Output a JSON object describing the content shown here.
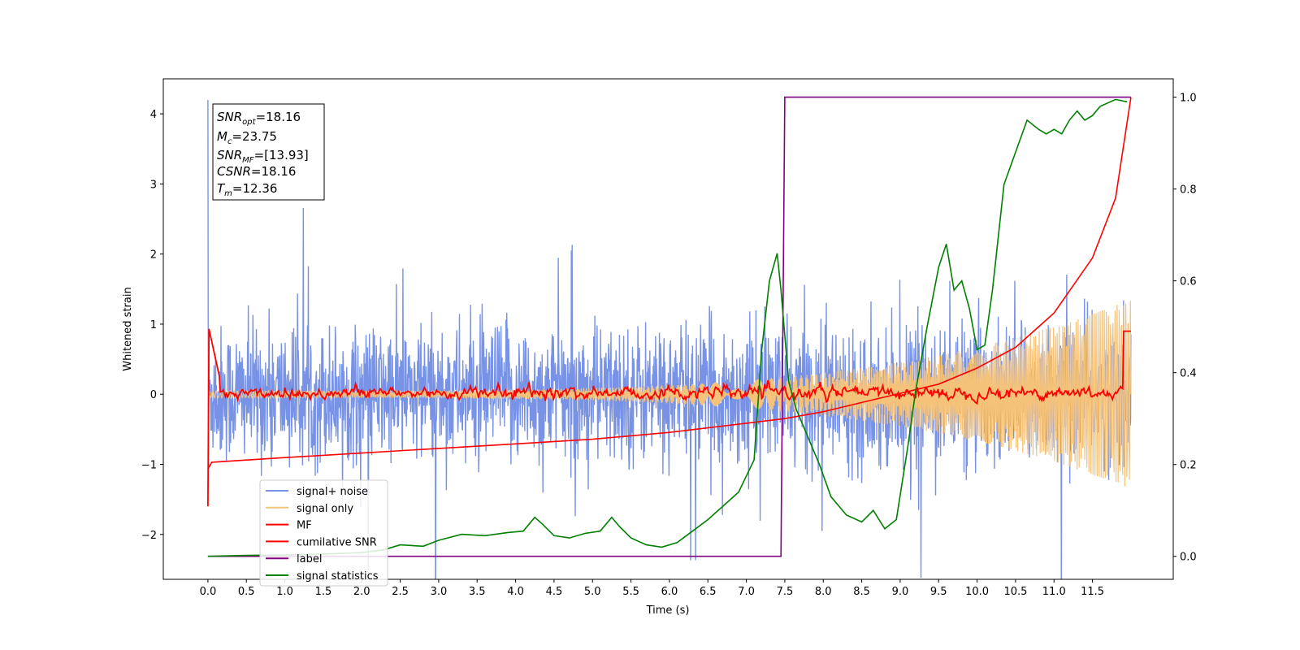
{
  "chart_data": {
    "type": "line",
    "xlabel": "Time (s)",
    "ylabel": "Whitened strain",
    "xlim": [
      -0.58,
      12.55
    ],
    "ylim": [
      -2.64,
      4.5
    ],
    "y2lim": [
      -0.05,
      1.04
    ],
    "x_ticks": [
      "0.0",
      "0.5",
      "1.0",
      "1.5",
      "2.0",
      "2.5",
      "3.0",
      "3.5",
      "4.0",
      "4.5",
      "5.0",
      "5.5",
      "6.0",
      "6.5",
      "7.0",
      "7.5",
      "8.0",
      "8.5",
      "9.0",
      "9.5",
      "10.0",
      "10.5",
      "11.0",
      "11.5"
    ],
    "y_ticks": [
      "-2",
      "-1",
      "0",
      "1",
      "2",
      "3",
      "4"
    ],
    "y2_ticks": [
      "0.0",
      "0.2",
      "0.4",
      "0.6",
      "0.8",
      "1.0"
    ],
    "duration": 12.0,
    "stats_box": {
      "line1_base": "SNR",
      "line1_sub": "opt",
      "line1_val": "=18.16",
      "line2_base": "M",
      "line2_sub": "c",
      "line2_val": "=23.75",
      "line3_base": "SNR",
      "line3_sub": "MF",
      "line3_val": "=[13.93]",
      "line4_base": "CSNR",
      "line4_val": "=18.16",
      "line5_base": "T",
      "line5_sub": "m",
      "line5_val": "=12.36"
    },
    "series": [
      {
        "name": "signal+ noise",
        "color": "#7893e6",
        "axis": "left",
        "style": "noise",
        "sigma": 0.48,
        "offset": 0.0,
        "spike_at_start": 4.2
      },
      {
        "name": "signal only",
        "color": "#f5c27a",
        "axis": "left",
        "style": "chirp",
        "amp_start": 0.05,
        "amp_end": 1.35
      },
      {
        "name": "MF",
        "color": "#ff0000",
        "axis": "left",
        "style": "mf",
        "start_value": -1.6,
        "peak_start": 1.0,
        "level": 0.02
      },
      {
        "name": "cumilative SNR",
        "color": "#ff0000",
        "axis": "right",
        "x": [
          0.0,
          0.05,
          1.0,
          2.0,
          3.0,
          4.0,
          5.0,
          6.0,
          7.0,
          7.5,
          8.0,
          8.5,
          9.0,
          9.5,
          10.0,
          10.5,
          11.0,
          11.5,
          11.8,
          12.0
        ],
        "values": [
          0.19,
          0.205,
          0.215,
          0.225,
          0.235,
          0.245,
          0.255,
          0.27,
          0.29,
          0.3,
          0.315,
          0.335,
          0.355,
          0.375,
          0.41,
          0.455,
          0.53,
          0.65,
          0.78,
          1.0
        ]
      },
      {
        "name": "label",
        "color": "#800080",
        "axis": "right",
        "x": [
          0.0,
          7.45,
          7.5,
          12.0
        ],
        "values": [
          0.0,
          0.0,
          1.0,
          1.0
        ]
      },
      {
        "name": "signal statistics",
        "color": "#008000",
        "axis": "right",
        "x": [
          0.0,
          0.5,
          1.0,
          1.5,
          2.0,
          2.3,
          2.5,
          2.8,
          3.0,
          3.3,
          3.6,
          3.9,
          4.1,
          4.25,
          4.35,
          4.5,
          4.7,
          4.9,
          5.1,
          5.25,
          5.35,
          5.5,
          5.7,
          5.9,
          6.1,
          6.3,
          6.5,
          6.7,
          6.9,
          7.0,
          7.1,
          7.2,
          7.3,
          7.4,
          7.45,
          7.55,
          7.65,
          7.8,
          7.95,
          8.1,
          8.3,
          8.5,
          8.65,
          8.8,
          8.95,
          9.1,
          9.2,
          9.35,
          9.5,
          9.6,
          9.7,
          9.8,
          9.9,
          10.0,
          10.1,
          10.2,
          10.35,
          10.5,
          10.65,
          10.8,
          10.9,
          11.0,
          11.1,
          11.2,
          11.3,
          11.4,
          11.5,
          11.6,
          11.8,
          11.95
        ],
        "values": [
          0.0,
          0.002,
          0.003,
          0.005,
          0.008,
          0.015,
          0.025,
          0.022,
          0.035,
          0.048,
          0.045,
          0.052,
          0.055,
          0.085,
          0.07,
          0.045,
          0.04,
          0.05,
          0.055,
          0.085,
          0.065,
          0.04,
          0.025,
          0.02,
          0.03,
          0.055,
          0.08,
          0.11,
          0.14,
          0.175,
          0.21,
          0.45,
          0.6,
          0.66,
          0.58,
          0.38,
          0.32,
          0.26,
          0.2,
          0.13,
          0.09,
          0.075,
          0.1,
          0.06,
          0.08,
          0.24,
          0.36,
          0.5,
          0.63,
          0.68,
          0.58,
          0.6,
          0.54,
          0.45,
          0.46,
          0.58,
          0.81,
          0.88,
          0.95,
          0.93,
          0.92,
          0.93,
          0.92,
          0.95,
          0.97,
          0.95,
          0.96,
          0.98,
          0.995,
          0.99
        ]
      }
    ],
    "legend_position": "lower-left"
  }
}
